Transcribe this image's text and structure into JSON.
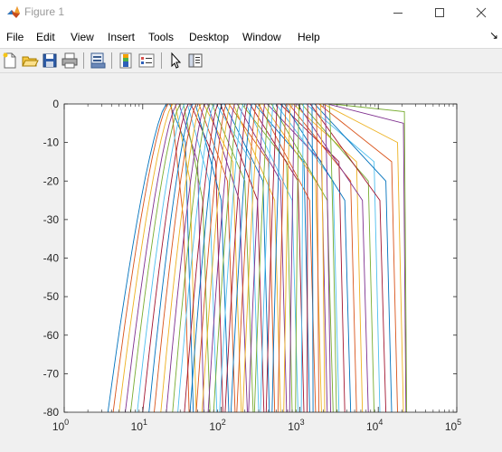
{
  "window": {
    "title": "Figure 1",
    "icon": "matlab-logo-icon",
    "controls": [
      "minimize-icon",
      "maximize-icon",
      "close-icon"
    ]
  },
  "menu": {
    "items": [
      "File",
      "Edit",
      "View",
      "Insert",
      "Tools",
      "Desktop",
      "Window",
      "Help"
    ],
    "overflow_icon": "dock-arrow-icon"
  },
  "toolbar": {
    "buttons": [
      "new-figure-icon",
      "open-file-icon",
      "save-icon",
      "print-icon",
      "print-preview-icon",
      "colorbar-icon",
      "legend-icon",
      "pointer-icon",
      "property-inspector-icon"
    ]
  },
  "chart_data": {
    "type": "line",
    "title": "",
    "xlabel": "",
    "ylabel": "",
    "xscale": "log",
    "xlim": [
      1,
      100000
    ],
    "ylim": [
      -80,
      0
    ],
    "grid": false,
    "legend": "none",
    "x_ticks": [
      "10^0",
      "10^1",
      "10^2",
      "10^3",
      "10^4",
      "10^5"
    ],
    "y_ticks": [
      "0",
      "-10",
      "-20",
      "-30",
      "-40",
      "-50",
      "-60",
      "-70",
      "-80"
    ],
    "colors": [
      "#0072BD",
      "#D95319",
      "#EDB120",
      "#7E2F8E",
      "#77AC30",
      "#4DBEEE",
      "#A2142F"
    ],
    "series": [
      {
        "values": [
          [
            3.6,
            -80
          ],
          [
            20,
            0
          ],
          [
            22,
            0
          ],
          [
            35,
            -10
          ],
          [
            44,
            -80
          ]
        ]
      },
      {
        "values": [
          [
            4.2,
            -80
          ],
          [
            21,
            0
          ],
          [
            23,
            0
          ],
          [
            33,
            -30
          ],
          [
            39,
            -80
          ]
        ]
      },
      {
        "values": [
          [
            5.0,
            -80
          ],
          [
            24,
            0
          ],
          [
            26,
            0
          ],
          [
            40,
            -20
          ],
          [
            48,
            -80
          ]
        ]
      },
      {
        "values": [
          [
            6.0,
            -80
          ],
          [
            27,
            0
          ],
          [
            29,
            0
          ],
          [
            50,
            -15
          ],
          [
            60,
            -80
          ]
        ]
      },
      {
        "values": [
          [
            7.0,
            -80
          ],
          [
            30,
            0
          ],
          [
            33,
            0
          ],
          [
            58,
            -25
          ],
          [
            72,
            -80
          ]
        ]
      },
      {
        "values": [
          [
            8.5,
            -80
          ],
          [
            34,
            0
          ],
          [
            37,
            0
          ],
          [
            70,
            -20
          ],
          [
            88,
            -80
          ]
        ]
      },
      {
        "values": [
          [
            10,
            -80
          ],
          [
            38,
            0
          ],
          [
            41,
            0
          ],
          [
            85,
            -15
          ],
          [
            105,
            -80
          ]
        ]
      },
      {
        "values": [
          [
            12,
            -80
          ],
          [
            43,
            0
          ],
          [
            47,
            0
          ],
          [
            100,
            -25
          ],
          [
            125,
            -80
          ]
        ]
      },
      {
        "values": [
          [
            14,
            -80
          ],
          [
            48,
            0
          ],
          [
            52,
            0
          ],
          [
            120,
            -20
          ],
          [
            150,
            -80
          ]
        ]
      },
      {
        "values": [
          [
            17,
            -80
          ],
          [
            55,
            0
          ],
          [
            60,
            0
          ],
          [
            140,
            -15
          ],
          [
            180,
            -80
          ]
        ]
      },
      {
        "values": [
          [
            20,
            -80
          ],
          [
            62,
            0
          ],
          [
            67,
            0
          ],
          [
            170,
            -25
          ],
          [
            215,
            -80
          ]
        ]
      },
      {
        "values": [
          [
            24,
            -80
          ],
          [
            70,
            0
          ],
          [
            76,
            0
          ],
          [
            200,
            -20
          ],
          [
            255,
            -80
          ]
        ]
      },
      {
        "values": [
          [
            28,
            -80
          ],
          [
            80,
            0
          ],
          [
            86,
            0
          ],
          [
            240,
            -15
          ],
          [
            300,
            -80
          ]
        ]
      },
      {
        "values": [
          [
            34,
            -80
          ],
          [
            90,
            0
          ],
          [
            98,
            0
          ],
          [
            290,
            -25
          ],
          [
            350,
            -80
          ]
        ]
      },
      {
        "values": [
          [
            40,
            -80
          ],
          [
            102,
            0
          ],
          [
            110,
            0
          ],
          [
            340,
            -20
          ],
          [
            410,
            -80
          ]
        ]
      },
      {
        "values": [
          [
            48,
            -80
          ],
          [
            115,
            0
          ],
          [
            125,
            0
          ],
          [
            400,
            -15
          ],
          [
            480,
            -80
          ]
        ]
      },
      {
        "values": [
          [
            57,
            -80
          ],
          [
            130,
            0
          ],
          [
            142,
            0
          ],
          [
            480,
            -25
          ],
          [
            570,
            -80
          ]
        ]
      },
      {
        "values": [
          [
            68,
            -80
          ],
          [
            148,
            0
          ],
          [
            160,
            0
          ],
          [
            570,
            -20
          ],
          [
            680,
            -80
          ]
        ]
      },
      {
        "values": [
          [
            80,
            -80
          ],
          [
            168,
            0
          ],
          [
            182,
            0
          ],
          [
            680,
            -15
          ],
          [
            800,
            -80
          ]
        ]
      },
      {
        "values": [
          [
            95,
            -80
          ],
          [
            190,
            0
          ],
          [
            205,
            0
          ],
          [
            800,
            -25
          ],
          [
            950,
            -80
          ]
        ]
      },
      {
        "values": [
          [
            112,
            -80
          ],
          [
            215,
            0
          ],
          [
            232,
            0
          ],
          [
            950,
            -20
          ],
          [
            1130,
            -80
          ]
        ]
      },
      {
        "values": [
          [
            133,
            -80
          ],
          [
            245,
            0
          ],
          [
            265,
            0
          ],
          [
            1130,
            -15
          ],
          [
            1340,
            -80
          ]
        ]
      },
      {
        "values": [
          [
            158,
            -80
          ],
          [
            278,
            0
          ],
          [
            300,
            0
          ],
          [
            1340,
            -25
          ],
          [
            1590,
            -80
          ]
        ]
      },
      {
        "values": [
          [
            188,
            -80
          ],
          [
            315,
            0
          ],
          [
            340,
            0
          ],
          [
            1590,
            -20
          ],
          [
            1890,
            -80
          ]
        ]
      },
      {
        "values": [
          [
            223,
            -80
          ],
          [
            357,
            0
          ],
          [
            385,
            0
          ],
          [
            1890,
            -15
          ],
          [
            2240,
            -80
          ]
        ]
      },
      {
        "values": [
          [
            265,
            -80
          ],
          [
            405,
            0
          ],
          [
            437,
            0
          ],
          [
            2240,
            -25
          ],
          [
            2660,
            -80
          ]
        ]
      },
      {
        "values": [
          [
            315,
            -80
          ],
          [
            460,
            0
          ],
          [
            496,
            0
          ],
          [
            2660,
            -20
          ],
          [
            3160,
            -80
          ]
        ]
      },
      {
        "values": [
          [
            374,
            -80
          ],
          [
            522,
            0
          ],
          [
            563,
            0
          ],
          [
            3160,
            -15
          ],
          [
            3750,
            -80
          ]
        ]
      },
      {
        "values": [
          [
            444,
            -80
          ],
          [
            592,
            0
          ],
          [
            639,
            0
          ],
          [
            3750,
            -25
          ],
          [
            4450,
            -80
          ]
        ]
      },
      {
        "values": [
          [
            527,
            -80
          ],
          [
            672,
            0
          ],
          [
            725,
            0
          ],
          [
            4450,
            -20
          ],
          [
            5290,
            -80
          ]
        ]
      },
      {
        "values": [
          [
            626,
            -80
          ],
          [
            762,
            0
          ],
          [
            822,
            0
          ],
          [
            5290,
            -15
          ],
          [
            6280,
            -80
          ]
        ]
      },
      {
        "values": [
          [
            743,
            -80
          ],
          [
            865,
            0
          ],
          [
            933,
            0
          ],
          [
            6280,
            -25
          ],
          [
            7460,
            -80
          ]
        ]
      },
      {
        "values": [
          [
            882,
            -80
          ],
          [
            981,
            0
          ],
          [
            1058,
            0
          ],
          [
            7460,
            -20
          ],
          [
            8860,
            -80
          ]
        ]
      },
      {
        "values": [
          [
            1047,
            -80
          ],
          [
            1113,
            0
          ],
          [
            1201,
            0
          ],
          [
            8860,
            -15
          ],
          [
            10500,
            -80
          ]
        ]
      },
      {
        "values": [
          [
            1243,
            -80
          ],
          [
            1263,
            0
          ],
          [
            1362,
            0
          ],
          [
            10500,
            -25
          ],
          [
            12500,
            -80
          ]
        ]
      },
      {
        "values": [
          [
            1476,
            -80
          ],
          [
            1433,
            0
          ],
          [
            1545,
            0
          ],
          [
            12500,
            -20
          ],
          [
            14800,
            -80
          ]
        ]
      },
      {
        "values": [
          [
            1752,
            -80
          ],
          [
            1625,
            0
          ],
          [
            1753,
            0
          ],
          [
            14800,
            -15
          ],
          [
            17600,
            -80
          ]
        ]
      },
      {
        "values": [
          [
            2081,
            -80
          ],
          [
            1844,
            0
          ],
          [
            1989,
            0
          ],
          [
            17600,
            -10
          ],
          [
            20900,
            -80
          ]
        ]
      },
      {
        "values": [
          [
            2470,
            -80
          ],
          [
            2092,
            0
          ],
          [
            2257,
            0
          ],
          [
            20900,
            -5
          ],
          [
            22500,
            -80
          ]
        ]
      },
      {
        "values": [
          [
            2933,
            -80
          ],
          [
            2374,
            0
          ],
          [
            2561,
            0
          ],
          [
            21500,
            -2
          ],
          [
            23000,
            -80
          ]
        ]
      }
    ]
  }
}
